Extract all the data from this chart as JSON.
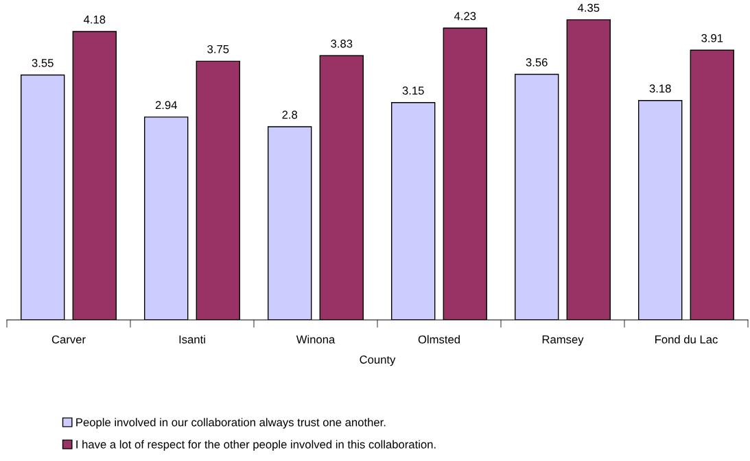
{
  "chart_data": {
    "type": "bar",
    "xlabel": "County",
    "categories": [
      "Carver",
      "Isanti",
      "Winona",
      "Olmsted",
      "Ramsey",
      "Fond du Lac"
    ],
    "series": [
      {
        "name": "People involved in our collaboration always trust one another.",
        "color": "#ccccff",
        "values": [
          3.55,
          2.94,
          2.8,
          3.15,
          3.56,
          3.18
        ]
      },
      {
        "name": "I have a lot of respect for the other people involved in this collaboration.",
        "color": "#993366",
        "values": [
          4.18,
          3.75,
          3.83,
          4.23,
          4.35,
          3.91
        ]
      }
    ],
    "data_labels": true,
    "grid": false,
    "legend": "bottom"
  }
}
